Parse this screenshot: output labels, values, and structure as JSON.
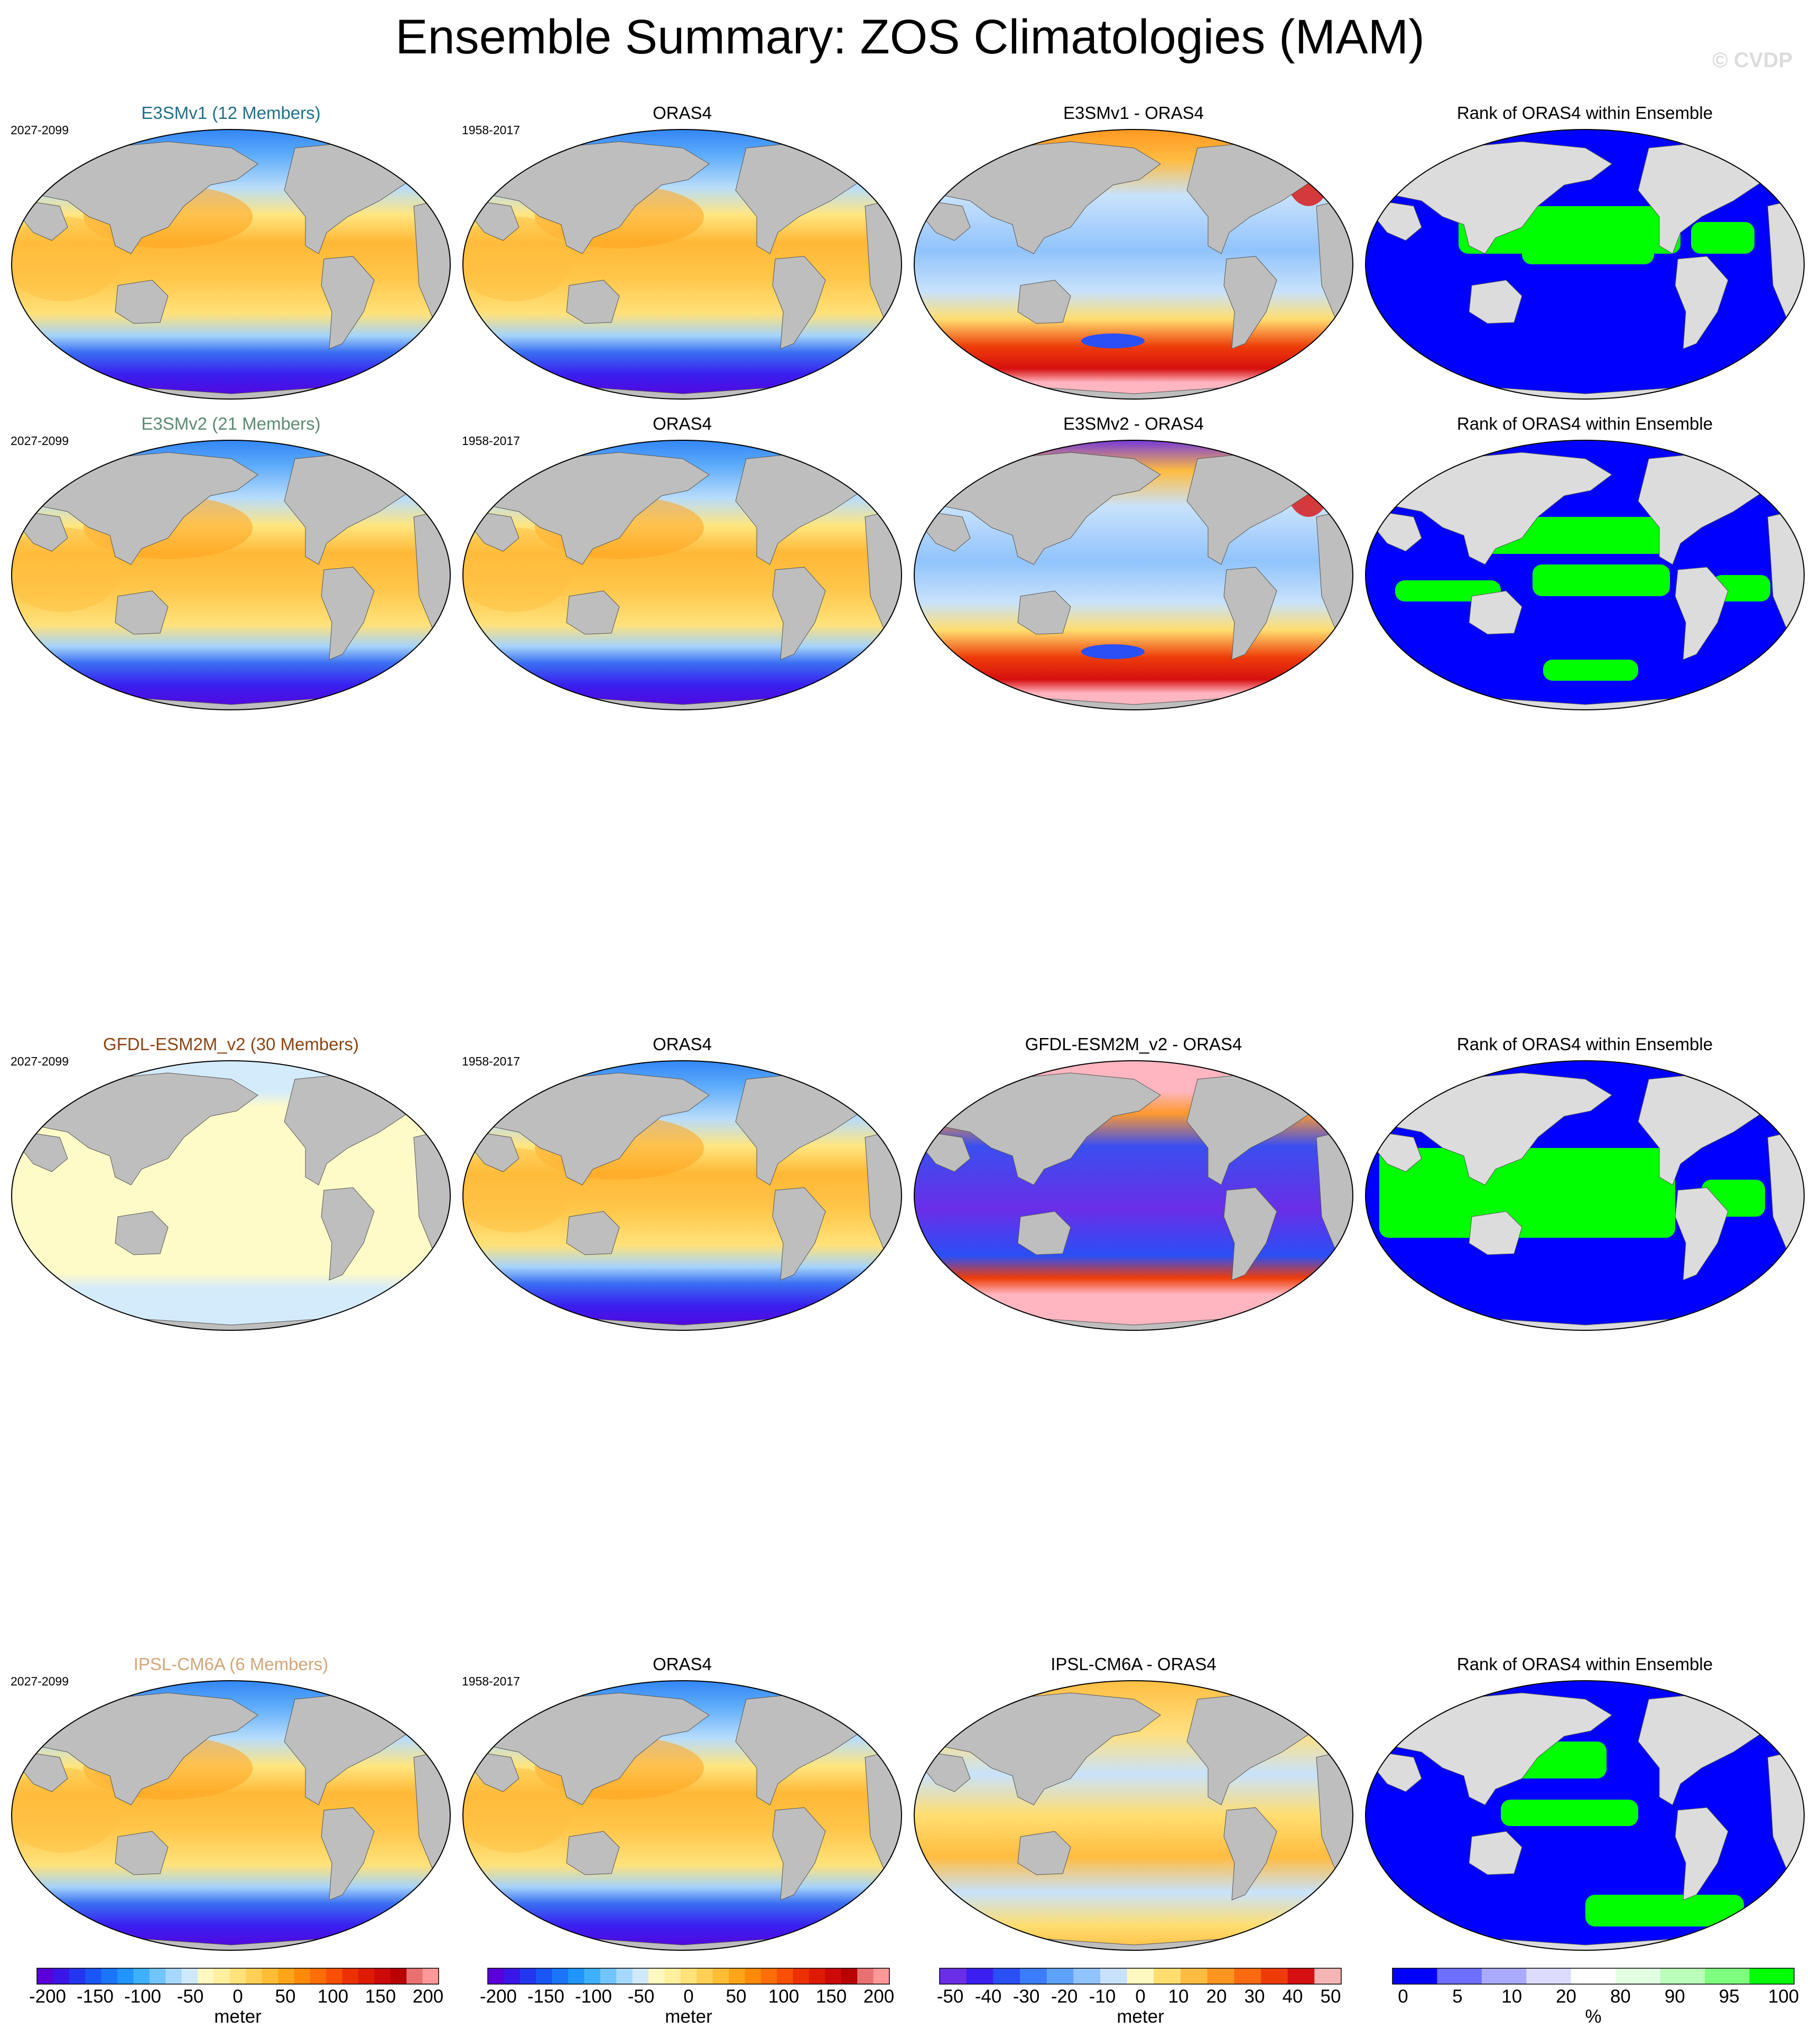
{
  "figure": {
    "title": "Ensemble Summary: ZOS Climatologies (MAM)",
    "watermark": "© CVDP"
  },
  "rows": [
    {
      "model": {
        "title": "E3SMv1 (12 Members)",
        "title_color": "#1f6f8b",
        "period": "2027-2099",
        "field": "clim",
        "variant": "e3v1"
      },
      "obs": {
        "title": "ORAS4",
        "period": "1958-2017",
        "field": "clim",
        "variant": "obs"
      },
      "diff": {
        "title": "E3SMv1 - ORAS4",
        "field": "diff",
        "variant": "d1"
      },
      "rank": {
        "title": "Rank of ORAS4 within Ensemble",
        "field": "rank",
        "variant": "r1"
      }
    },
    {
      "model": {
        "title": "E3SMv2 (21 Members)",
        "title_color": "#5b8a72",
        "period": "2027-2099",
        "field": "clim",
        "variant": "e3v2"
      },
      "obs": {
        "title": "ORAS4",
        "period": "1958-2017",
        "field": "clim",
        "variant": "obs"
      },
      "diff": {
        "title": "E3SMv2 - ORAS4",
        "field": "diff",
        "variant": "d2"
      },
      "rank": {
        "title": "Rank of ORAS4 within Ensemble",
        "field": "rank",
        "variant": "r2"
      }
    },
    {
      "model": {
        "title": "GFDL-ESM2M_v2 (30 Members)",
        "title_color": "#8b4513",
        "period": "2027-2099",
        "field": "clim",
        "variant": "gfdl"
      },
      "obs": {
        "title": "ORAS4",
        "period": "1958-2017",
        "field": "clim",
        "variant": "obs"
      },
      "diff": {
        "title": "GFDL-ESM2M_v2 - ORAS4",
        "field": "diff",
        "variant": "d3"
      },
      "rank": {
        "title": "Rank of ORAS4 within Ensemble",
        "field": "rank",
        "variant": "r3"
      }
    },
    {
      "model": {
        "title": "IPSL-CM6A (6 Members)",
        "title_color": "#d2a679",
        "period": "2027-2099",
        "field": "clim",
        "variant": "ipsl"
      },
      "obs": {
        "title": "ORAS4",
        "period": "1958-2017",
        "field": "clim",
        "variant": "obs"
      },
      "diff": {
        "title": "IPSL-CM6A - ORAS4",
        "field": "diff",
        "variant": "d4"
      },
      "rank": {
        "title": "Rank of ORAS4 within Ensemble",
        "field": "rank",
        "variant": "r4"
      }
    }
  ],
  "colorbars": [
    {
      "unit": "meter",
      "tick_labels": [
        "-200",
        "-150",
        "-100",
        "-50",
        "0",
        "50",
        "100",
        "150",
        "200"
      ],
      "colors": [
        "#5a00d9",
        "#3a16e8",
        "#2435f0",
        "#1a55f5",
        "#1a75fb",
        "#1f95fd",
        "#3fb0fd",
        "#72c4fd",
        "#a5d8fc",
        "#cfe9fb",
        "#fff8c0",
        "#fff0a0",
        "#ffe27a",
        "#ffd055",
        "#ffbd35",
        "#ffa51a",
        "#ff8a0a",
        "#ff6e05",
        "#f85000",
        "#ec3000",
        "#de1a00",
        "#cc0a0a",
        "#b80000",
        "#e87070",
        "#ff9999"
      ]
    },
    {
      "unit": "meter",
      "tick_labels": [
        "-200",
        "-150",
        "-100",
        "-50",
        "0",
        "50",
        "100",
        "150",
        "200"
      ],
      "colors": [
        "#5a00d9",
        "#3a16e8",
        "#2435f0",
        "#1a55f5",
        "#1a75fb",
        "#1f95fd",
        "#3fb0fd",
        "#72c4fd",
        "#a5d8fc",
        "#cfe9fb",
        "#fff8c0",
        "#fff0a0",
        "#ffe27a",
        "#ffd055",
        "#ffbd35",
        "#ffa51a",
        "#ff8a0a",
        "#ff6e05",
        "#f85000",
        "#ec3000",
        "#de1a00",
        "#cc0a0a",
        "#b80000",
        "#e87070",
        "#ff9999"
      ]
    },
    {
      "unit": "meter",
      "tick_labels": [
        "-50",
        "-40",
        "-30",
        "-20",
        "-10",
        "0",
        "10",
        "20",
        "30",
        "40",
        "50"
      ],
      "colors": [
        "#6a2ee8",
        "#3a1ff0",
        "#2a4ff5",
        "#3a7cfa",
        "#5fa2fc",
        "#91c3fc",
        "#c8e2fb",
        "#fff8c0",
        "#ffde70",
        "#ffbc40",
        "#ff9520",
        "#fa6a10",
        "#ee3c08",
        "#d61010",
        "#f5b5b5"
      ]
    },
    {
      "unit": "%",
      "tick_labels": [
        "0",
        "5",
        "10",
        "20",
        "80",
        "90",
        "95",
        "100"
      ],
      "colors": [
        "#0000ff",
        "#6f6fff",
        "#aaaaff",
        "#dcdcff",
        "#ffffff",
        "#e2ffe2",
        "#bbffbb",
        "#7fff7f",
        "#00ff00"
      ]
    }
  ],
  "colors": {
    "land_clim": "#bebebe",
    "land_rank": "#dcdcdc",
    "rank_low": "#0000ff",
    "rank_high": "#00ff00",
    "ice_diff": "#ffb6c1"
  }
}
